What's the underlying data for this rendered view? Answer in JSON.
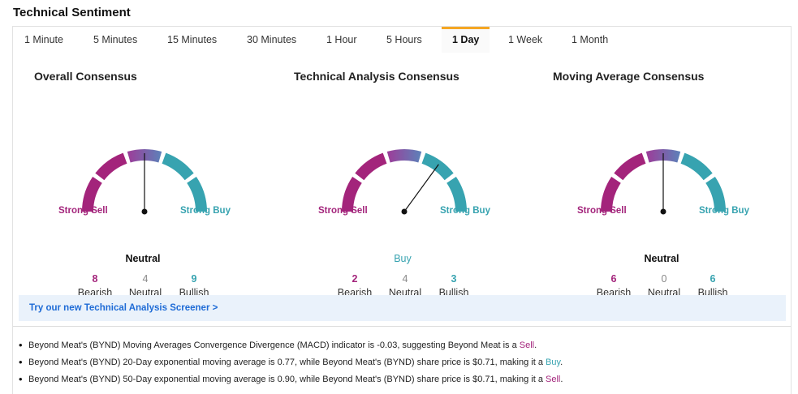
{
  "section_title": "Technical Sentiment",
  "tabs": [
    {
      "label": "1 Minute"
    },
    {
      "label": "5 Minutes"
    },
    {
      "label": "15 Minutes"
    },
    {
      "label": "30 Minutes"
    },
    {
      "label": "1 Hour"
    },
    {
      "label": "5 Hours"
    },
    {
      "label": "1 Day",
      "active": true
    },
    {
      "label": "1 Week"
    },
    {
      "label": "1 Month"
    }
  ],
  "colors": {
    "sell": "#a3247b",
    "buy": "#37a3b0",
    "neutral": "#7e5ea8",
    "accent": "#f5a623",
    "link": "#1e6bd6"
  },
  "panels": [
    {
      "title": "Overall Consensus",
      "gauge_value": 0.0,
      "strong_sell": "Strong Sell",
      "strong_buy": "Strong Buy",
      "verdict": "Neutral",
      "bearish": "8",
      "neutral": "4",
      "bullish": "9",
      "bearish_label": "Bearish",
      "neutral_label": "Neutral",
      "bullish_label": "Bullish"
    },
    {
      "title": "Technical Analysis Consensus",
      "gauge_value": 0.4,
      "strong_sell": "Strong Sell",
      "strong_buy": "Strong Buy",
      "verdict": "Buy",
      "bearish": "2",
      "neutral": "4",
      "bullish": "3",
      "bearish_label": "Bearish",
      "neutral_label": "Neutral",
      "bullish_label": "Bullish"
    },
    {
      "title": "Moving Average Consensus",
      "gauge_value": 0.0,
      "strong_sell": "Strong Sell",
      "strong_buy": "Strong Buy",
      "verdict": "Neutral",
      "bearish": "6",
      "neutral": "0",
      "bullish": "6",
      "bearish_label": "Bearish",
      "neutral_label": "Neutral",
      "bullish_label": "Bullish"
    }
  ],
  "screener_link": "Try our new Technical Analysis Screener >",
  "notes": [
    {
      "text": "Beyond Meat's (BYND) Moving Averages Convergence Divergence (MACD) indicator is -0.03, suggesting Beyond Meat is a ",
      "signal": "Sell",
      "end": "."
    },
    {
      "text": "Beyond Meat's (BYND) 20-Day exponential moving average is 0.77, while Beyond Meat's (BYND) share price is $0.71, making it a ",
      "signal": "Buy",
      "end": "."
    },
    {
      "text": "Beyond Meat's (BYND) 50-Day exponential moving average is 0.90, while Beyond Meat's (BYND) share price is $0.71, making it a ",
      "signal": "Sell",
      "end": "."
    }
  ]
}
